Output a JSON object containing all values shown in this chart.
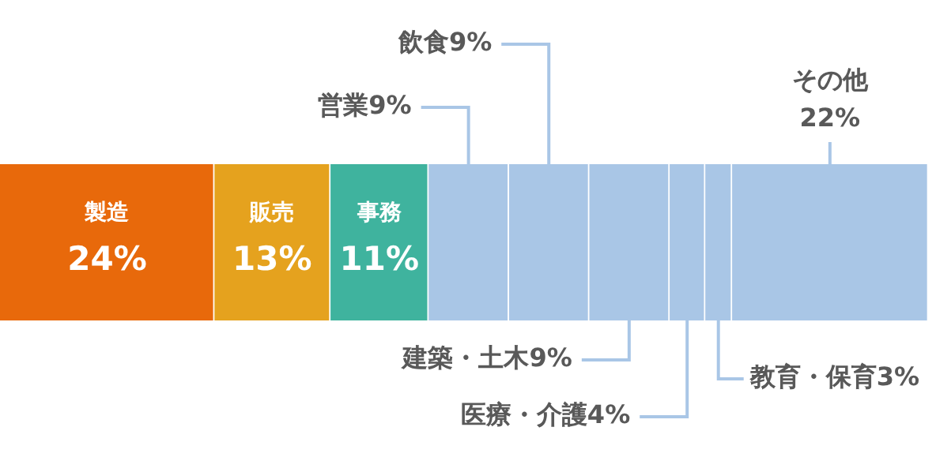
{
  "chart_data": {
    "type": "bar",
    "orientation": "horizontal",
    "stacked": true,
    "categories": [
      null
    ],
    "xlim": [
      0,
      104
    ],
    "tick_labels": false,
    "legend": false,
    "series": [
      {
        "name": "製造",
        "color": "#e8690b",
        "values": [
          24
        ],
        "value_labels": [
          "24%"
        ]
      },
      {
        "name": "販売",
        "color": "#e5a21e",
        "values": [
          13
        ],
        "value_labels": [
          "13%"
        ]
      },
      {
        "name": "事務",
        "color": "#3fb39e",
        "values": [
          11
        ],
        "value_labels": [
          "11%"
        ]
      },
      {
        "name": "営業",
        "color": "#a9c6e6",
        "values": [
          9
        ],
        "value_labels": [
          "9%"
        ]
      },
      {
        "name": "飲食",
        "color": "#a9c6e6",
        "values": [
          9
        ],
        "value_labels": [
          "9%"
        ]
      },
      {
        "name": "建築・土木",
        "color": "#a9c6e6",
        "values": [
          9
        ],
        "value_labels": [
          "9%"
        ]
      },
      {
        "name": "医療・介護",
        "color": "#a9c6e6",
        "values": [
          4
        ],
        "value_labels": [
          "4%"
        ]
      },
      {
        "name": "教育・保育",
        "color": "#a9c6e6",
        "values": [
          3
        ],
        "value_labels": [
          "3%"
        ]
      },
      {
        "name": "その他",
        "color": "#a9c6e6",
        "values": [
          22
        ],
        "value_labels": [
          "22%"
        ]
      }
    ]
  }
}
